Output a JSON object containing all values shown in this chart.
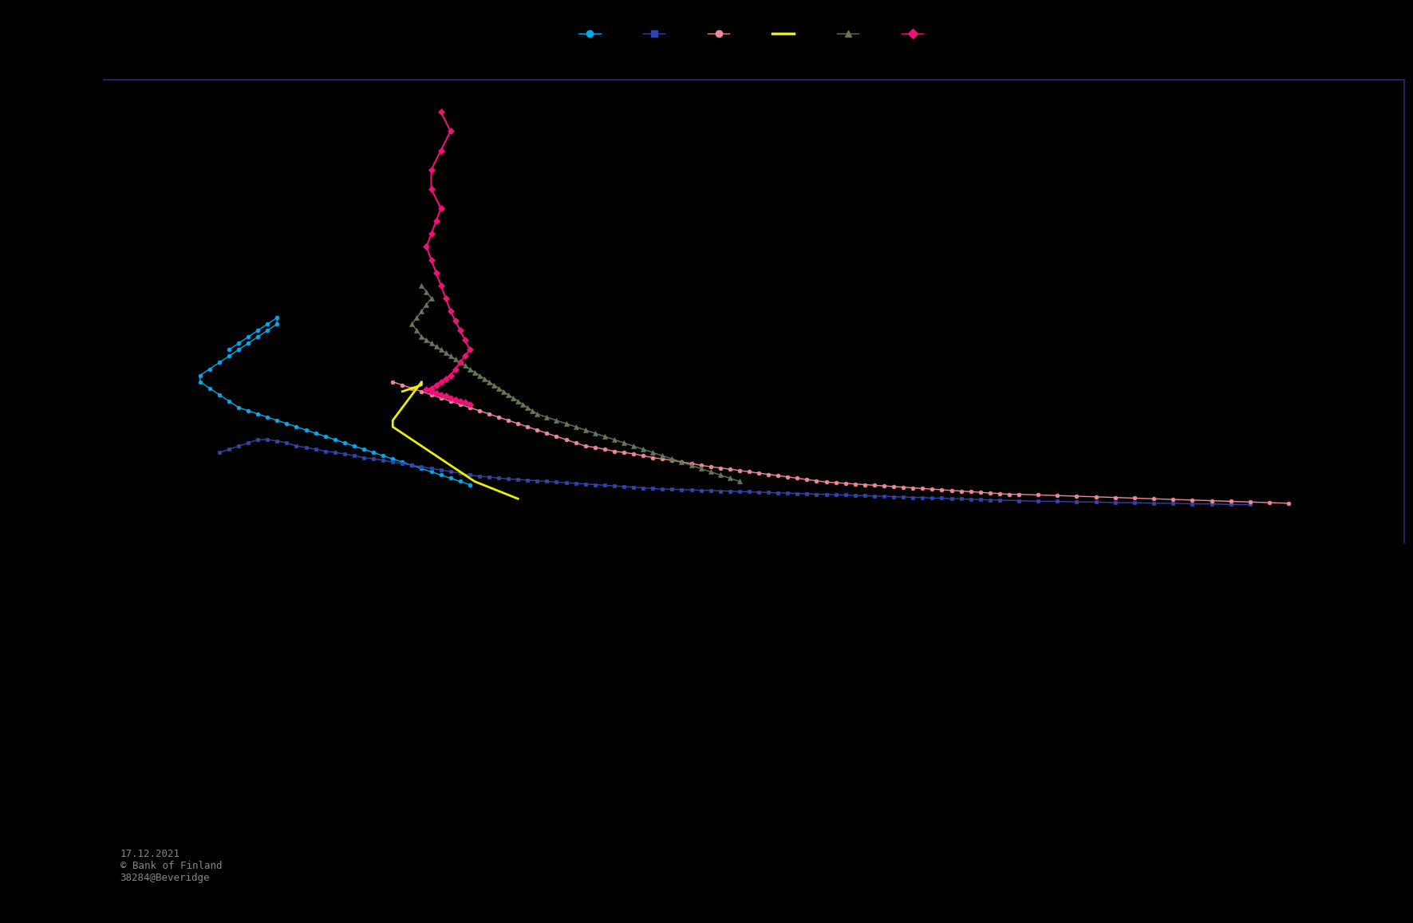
{
  "background_color": "#000000",
  "plot_bg_color": "#000000",
  "border_color": "#222266",
  "figsize": [
    17.71,
    11.57
  ],
  "dpi": 100,
  "footer_text": "17.12.2021\n© Bank of Finland\n38284@Beveridge",
  "xlim": [
    2.5,
    16.0
  ],
  "ylim": [
    -0.2,
    7.0
  ],
  "legend_markers": [
    {
      "color": "#00aaee",
      "marker": "o",
      "label": ""
    },
    {
      "color": "#3344aa",
      "marker": "s",
      "label": ""
    },
    {
      "color": "#ee8899",
      "marker": "o",
      "label": ""
    },
    {
      "color": "#eeee00",
      "marker": "_",
      "label": ""
    },
    {
      "color": "#667755",
      "marker": "^",
      "label": ""
    },
    {
      "color": "#ee1177",
      "marker": "D",
      "label": ""
    }
  ],
  "series": [
    {
      "name": "cyan_circles",
      "color": "#00aaee",
      "marker": "o",
      "markersize": 3.5,
      "linewidth": 1.0,
      "x": [
        3.8,
        3.9,
        4.0,
        4.1,
        4.2,
        4.3,
        4.3,
        4.2,
        4.1,
        4.0,
        3.9,
        3.8,
        3.7,
        3.6,
        3.5,
        3.5,
        3.6,
        3.7,
        3.8,
        3.9,
        4.0,
        4.1,
        4.2,
        4.3,
        4.4,
        4.5,
        4.6,
        4.7,
        4.8,
        4.9,
        5.0,
        5.1,
        5.2,
        5.3,
        5.4,
        5.5,
        5.6,
        5.7,
        5.8,
        5.9,
        6.0,
        6.1,
        6.2,
        6.3
      ],
      "y": [
        2.8,
        2.9,
        3.0,
        3.1,
        3.2,
        3.3,
        3.2,
        3.1,
        3.0,
        2.9,
        2.8,
        2.7,
        2.6,
        2.5,
        2.4,
        2.3,
        2.2,
        2.1,
        2.0,
        1.9,
        1.85,
        1.8,
        1.75,
        1.7,
        1.65,
        1.6,
        1.55,
        1.5,
        1.45,
        1.4,
        1.35,
        1.3,
        1.25,
        1.2,
        1.15,
        1.1,
        1.05,
        1.0,
        0.95,
        0.9,
        0.85,
        0.8,
        0.75,
        0.7
      ]
    },
    {
      "name": "dark_blue_squares",
      "color": "#3344aa",
      "marker": "s",
      "markersize": 3.5,
      "linewidth": 1.0,
      "x": [
        3.7,
        3.8,
        3.9,
        4.0,
        4.1,
        4.2,
        4.3,
        4.4,
        4.5,
        4.6,
        4.7,
        4.8,
        4.9,
        5.0,
        5.1,
        5.2,
        5.3,
        5.4,
        5.5,
        5.6,
        5.7,
        5.8,
        5.9,
        6.0,
        6.1,
        6.2,
        6.3,
        6.4,
        6.5,
        6.6,
        6.7,
        6.8,
        6.9,
        7.0,
        7.1,
        7.2,
        7.3,
        7.4,
        7.5,
        7.6,
        7.7,
        7.8,
        7.9,
        8.0,
        8.1,
        8.2,
        8.3,
        8.4,
        8.5,
        8.6,
        8.7,
        8.8,
        8.9,
        9.0,
        9.1,
        9.2,
        9.3,
        9.4,
        9.5,
        9.6,
        9.7,
        9.8,
        9.9,
        10.0,
        10.1,
        10.2,
        10.3,
        10.4,
        10.5,
        10.6,
        10.7,
        10.8,
        10.9,
        11.0,
        11.1,
        11.2,
        11.3,
        11.4,
        11.5,
        11.6,
        11.7,
        11.8,
        12.0,
        12.2,
        12.4,
        12.6,
        12.8,
        13.0,
        13.2,
        13.4,
        13.6,
        13.8,
        14.0,
        14.2,
        14.4
      ],
      "y": [
        1.2,
        1.25,
        1.3,
        1.35,
        1.4,
        1.4,
        1.38,
        1.35,
        1.3,
        1.28,
        1.25,
        1.22,
        1.2,
        1.18,
        1.15,
        1.12,
        1.1,
        1.08,
        1.05,
        1.03,
        1.0,
        0.98,
        0.95,
        0.93,
        0.9,
        0.88,
        0.85,
        0.83,
        0.82,
        0.8,
        0.79,
        0.78,
        0.77,
        0.76,
        0.75,
        0.74,
        0.73,
        0.72,
        0.71,
        0.7,
        0.69,
        0.68,
        0.67,
        0.66,
        0.65,
        0.64,
        0.63,
        0.63,
        0.62,
        0.62,
        0.61,
        0.61,
        0.6,
        0.6,
        0.59,
        0.59,
        0.58,
        0.58,
        0.57,
        0.57,
        0.56,
        0.56,
        0.55,
        0.55,
        0.54,
        0.54,
        0.53,
        0.53,
        0.52,
        0.52,
        0.51,
        0.51,
        0.5,
        0.5,
        0.49,
        0.49,
        0.48,
        0.48,
        0.47,
        0.47,
        0.46,
        0.46,
        0.45,
        0.44,
        0.44,
        0.43,
        0.43,
        0.42,
        0.42,
        0.41,
        0.41,
        0.4,
        0.4,
        0.39,
        0.39
      ]
    },
    {
      "name": "pink_circles",
      "color": "#ee8899",
      "marker": "o",
      "markersize": 3.5,
      "linewidth": 1.0,
      "x": [
        5.5,
        5.6,
        5.7,
        5.8,
        5.9,
        6.0,
        6.1,
        6.2,
        6.3,
        6.4,
        6.5,
        6.6,
        6.7,
        6.8,
        6.9,
        7.0,
        7.1,
        7.2,
        7.3,
        7.4,
        7.5,
        7.6,
        7.7,
        7.8,
        7.9,
        8.0,
        8.1,
        8.2,
        8.3,
        8.4,
        8.5,
        8.6,
        8.7,
        8.8,
        8.9,
        9.0,
        9.1,
        9.2,
        9.3,
        9.4,
        9.5,
        9.6,
        9.7,
        9.8,
        9.9,
        10.0,
        10.1,
        10.2,
        10.3,
        10.4,
        10.5,
        10.6,
        10.7,
        10.8,
        10.9,
        11.0,
        11.1,
        11.2,
        11.3,
        11.4,
        11.5,
        11.6,
        11.7,
        11.8,
        11.9,
        12.0,
        12.2,
        12.4,
        12.6,
        12.8,
        13.0,
        13.2,
        13.4,
        13.6,
        13.8,
        14.0,
        14.2,
        14.4,
        14.6,
        14.8
      ],
      "y": [
        2.3,
        2.25,
        2.2,
        2.15,
        2.1,
        2.05,
        2.0,
        1.95,
        1.9,
        1.85,
        1.8,
        1.75,
        1.7,
        1.65,
        1.6,
        1.55,
        1.5,
        1.45,
        1.4,
        1.35,
        1.3,
        1.28,
        1.25,
        1.22,
        1.2,
        1.18,
        1.15,
        1.12,
        1.1,
        1.08,
        1.05,
        1.03,
        1.0,
        0.98,
        0.96,
        0.94,
        0.92,
        0.9,
        0.88,
        0.86,
        0.84,
        0.82,
        0.8,
        0.78,
        0.76,
        0.74,
        0.73,
        0.72,
        0.71,
        0.7,
        0.69,
        0.68,
        0.67,
        0.66,
        0.65,
        0.64,
        0.63,
        0.62,
        0.61,
        0.6,
        0.59,
        0.58,
        0.57,
        0.56,
        0.55,
        0.55,
        0.54,
        0.53,
        0.52,
        0.51,
        0.5,
        0.49,
        0.48,
        0.47,
        0.46,
        0.45,
        0.44,
        0.43,
        0.42,
        0.41
      ]
    },
    {
      "name": "yellow_line",
      "color": "#eeee00",
      "marker": "None",
      "markersize": 2,
      "linewidth": 2.0,
      "x": [
        5.6,
        5.7,
        5.8,
        5.8,
        5.75,
        5.7,
        5.65,
        5.6,
        5.55,
        5.5,
        5.5,
        5.55,
        5.6,
        5.65,
        5.7,
        5.75,
        5.8,
        5.85,
        5.9,
        5.95,
        6.0,
        6.05,
        6.1,
        6.15,
        6.2,
        6.25,
        6.3,
        6.35,
        6.4,
        6.45,
        6.5,
        6.55,
        6.6,
        6.65,
        6.7,
        6.75,
        6.8
      ],
      "y": [
        2.15,
        2.2,
        2.25,
        2.3,
        2.2,
        2.1,
        2.0,
        1.9,
        1.8,
        1.7,
        1.6,
        1.55,
        1.5,
        1.45,
        1.4,
        1.35,
        1.3,
        1.25,
        1.2,
        1.15,
        1.1,
        1.05,
        1.0,
        0.95,
        0.9,
        0.85,
        0.8,
        0.75,
        0.72,
        0.69,
        0.66,
        0.63,
        0.6,
        0.57,
        0.54,
        0.51,
        0.48
      ]
    },
    {
      "name": "green_triangles",
      "color": "#667755",
      "marker": "^",
      "markersize": 4.5,
      "linewidth": 1.0,
      "x": [
        5.8,
        5.85,
        5.9,
        5.85,
        5.8,
        5.75,
        5.7,
        5.75,
        5.8,
        5.85,
        5.9,
        5.95,
        6.0,
        6.05,
        6.1,
        6.15,
        6.2,
        6.25,
        6.3,
        6.35,
        6.4,
        6.45,
        6.5,
        6.55,
        6.6,
        6.65,
        6.7,
        6.75,
        6.8,
        6.85,
        6.9,
        6.95,
        7.0,
        7.1,
        7.2,
        7.3,
        7.4,
        7.5,
        7.6,
        7.7,
        7.8,
        7.9,
        8.0,
        8.1,
        8.2,
        8.3,
        8.4,
        8.5,
        8.6,
        8.7,
        8.8,
        8.9,
        9.0,
        9.1
      ],
      "y": [
        3.8,
        3.7,
        3.6,
        3.5,
        3.4,
        3.3,
        3.2,
        3.1,
        3.0,
        2.95,
        2.9,
        2.85,
        2.8,
        2.75,
        2.7,
        2.65,
        2.6,
        2.55,
        2.5,
        2.45,
        2.4,
        2.35,
        2.3,
        2.25,
        2.2,
        2.15,
        2.1,
        2.05,
        2.0,
        1.95,
        1.9,
        1.85,
        1.8,
        1.75,
        1.7,
        1.65,
        1.6,
        1.55,
        1.5,
        1.45,
        1.4,
        1.35,
        1.3,
        1.25,
        1.2,
        1.15,
        1.1,
        1.05,
        1.0,
        0.95,
        0.9,
        0.85,
        0.8,
        0.75
      ]
    },
    {
      "name": "hotpink_diamonds",
      "color": "#ee1177",
      "marker": "D",
      "markersize": 4.5,
      "linewidth": 1.5,
      "x": [
        6.0,
        6.1,
        6.0,
        5.9,
        5.9,
        6.0,
        5.95,
        5.9,
        5.85,
        5.9,
        5.95,
        6.0,
        6.05,
        6.1,
        6.15,
        6.2,
        6.25,
        6.3,
        6.25,
        6.2,
        6.15,
        6.1,
        6.05,
        6.0,
        5.95,
        5.9,
        5.85,
        5.9,
        5.95,
        6.0,
        6.05,
        6.1,
        6.15,
        6.2,
        6.25,
        6.3
      ],
      "y": [
        6.5,
        6.2,
        5.9,
        5.6,
        5.3,
        5.0,
        4.8,
        4.6,
        4.4,
        4.2,
        4.0,
        3.8,
        3.6,
        3.4,
        3.25,
        3.1,
        2.95,
        2.8,
        2.7,
        2.6,
        2.5,
        2.4,
        2.35,
        2.3,
        2.25,
        2.2,
        2.18,
        2.15,
        2.12,
        2.1,
        2.08,
        2.05,
        2.02,
        2.0,
        1.98,
        1.95
      ]
    }
  ]
}
